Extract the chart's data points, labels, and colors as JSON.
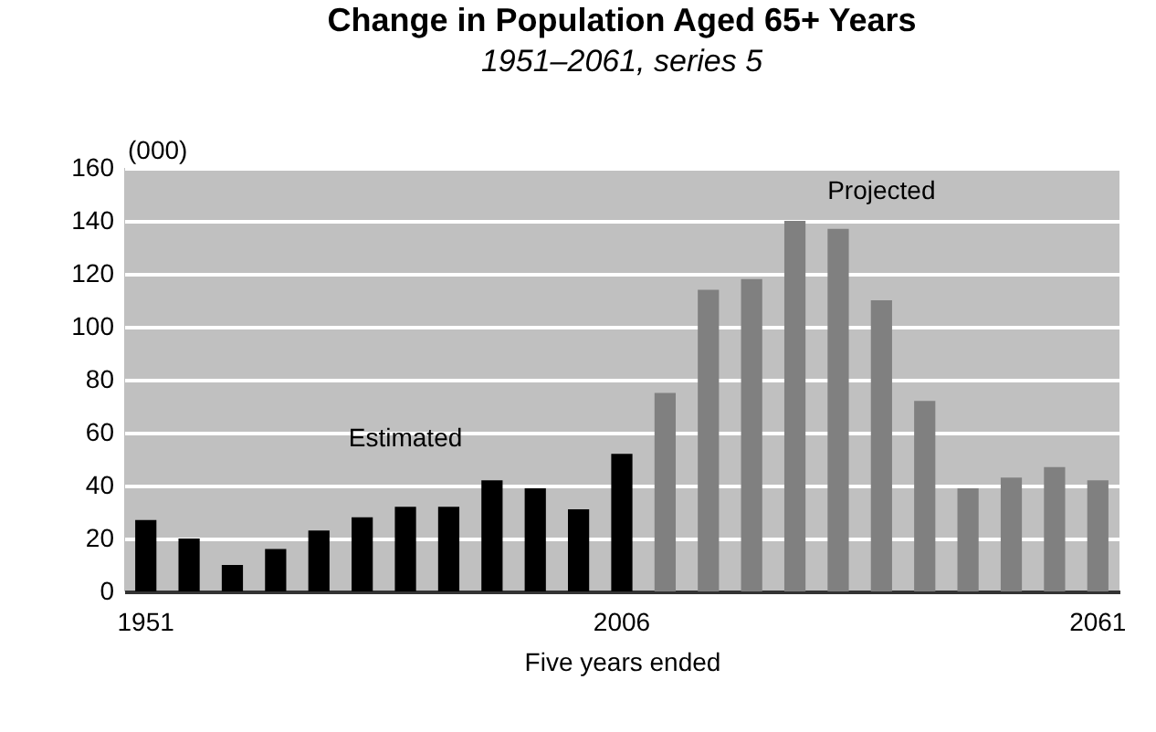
{
  "chart_data": {
    "type": "bar",
    "title": "Change in Population Aged 65+ Years",
    "subtitle": "1951–2061, series 5",
    "xlabel": "Five years ended",
    "ylabel": "(000)",
    "categories": [
      "1951",
      null,
      null,
      null,
      null,
      null,
      null,
      null,
      null,
      null,
      null,
      "2006",
      null,
      null,
      null,
      null,
      null,
      null,
      null,
      null,
      null,
      null,
      "2061"
    ],
    "values": [
      27,
      20,
      10,
      16,
      23,
      28,
      32,
      32,
      42,
      39,
      31,
      52,
      75,
      114,
      118,
      140,
      137,
      110,
      72,
      39,
      43,
      47,
      42
    ],
    "colors": [
      "#000000",
      "#000000",
      "#000000",
      "#000000",
      "#000000",
      "#000000",
      "#000000",
      "#000000",
      "#000000",
      "#000000",
      "#000000",
      "#000000",
      "#808080",
      "#808080",
      "#808080",
      "#808080",
      "#808080",
      "#808080",
      "#808080",
      "#808080",
      "#808080",
      "#808080",
      "#808080"
    ],
    "ylim": [
      0,
      160
    ],
    "yticks": [
      0,
      20,
      40,
      60,
      80,
      100,
      120,
      140,
      160
    ],
    "grid": "y",
    "annotations": [
      "Estimated",
      "Projected"
    ]
  }
}
